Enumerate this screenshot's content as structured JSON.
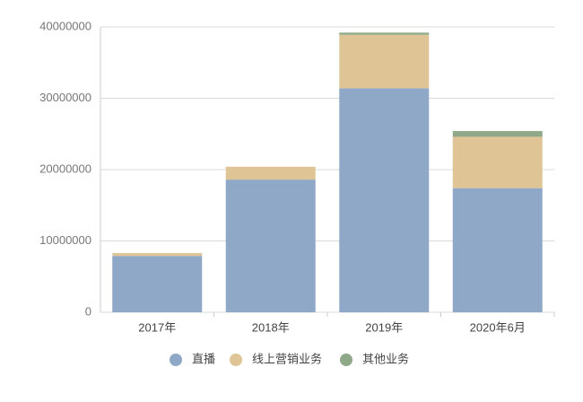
{
  "chart_data": {
    "type": "stacked-bar",
    "categories": [
      "2017年",
      "2018年",
      "2019年",
      "2020年6月"
    ],
    "series": [
      {
        "name": "直播",
        "color": "#8fa8c7",
        "values": [
          7900000,
          18600000,
          31400000,
          17400000
        ]
      },
      {
        "name": "线上营销业务",
        "color": "#dfc595",
        "values": [
          400000,
          1800000,
          7500000,
          7200000
        ]
      },
      {
        "name": "其他业务",
        "color": "#8fa888",
        "values": [
          0,
          0,
          300000,
          800000
        ]
      }
    ],
    "ylim": [
      0,
      40000000
    ],
    "yticks": [
      0,
      10000000,
      20000000,
      30000000,
      40000000
    ],
    "grid": true
  }
}
